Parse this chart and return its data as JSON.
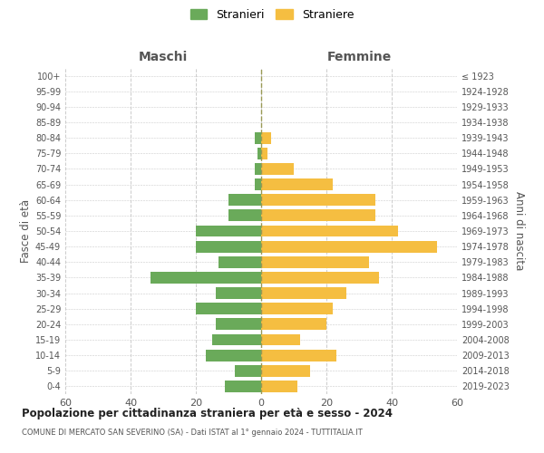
{
  "age_groups": [
    "0-4",
    "5-9",
    "10-14",
    "15-19",
    "20-24",
    "25-29",
    "30-34",
    "35-39",
    "40-44",
    "45-49",
    "50-54",
    "55-59",
    "60-64",
    "65-69",
    "70-74",
    "75-79",
    "80-84",
    "85-89",
    "90-94",
    "95-99",
    "100+"
  ],
  "birth_years": [
    "2019-2023",
    "2014-2018",
    "2009-2013",
    "2004-2008",
    "1999-2003",
    "1994-1998",
    "1989-1993",
    "1984-1988",
    "1979-1983",
    "1974-1978",
    "1969-1973",
    "1964-1968",
    "1959-1963",
    "1954-1958",
    "1949-1953",
    "1944-1948",
    "1939-1943",
    "1934-1938",
    "1929-1933",
    "1924-1928",
    "≤ 1923"
  ],
  "maschi": [
    11,
    8,
    17,
    15,
    14,
    20,
    14,
    34,
    13,
    20,
    20,
    10,
    10,
    2,
    2,
    1,
    2,
    0,
    0,
    0,
    0
  ],
  "femmine": [
    11,
    15,
    23,
    12,
    20,
    22,
    26,
    36,
    33,
    54,
    42,
    35,
    35,
    22,
    10,
    2,
    3,
    0,
    0,
    0,
    0
  ],
  "color_maschi": "#6aaa5a",
  "color_femmine": "#f5be41",
  "title": "Popolazione per cittadinanza straniera per età e sesso - 2024",
  "subtitle": "COMUNE DI MERCATO SAN SEVERINO (SA) - Dati ISTAT al 1° gennaio 2024 - TUTTITALIA.IT",
  "xlabel_left": "Maschi",
  "xlabel_right": "Femmine",
  "ylabel_left": "Fasce di età",
  "ylabel_right": "Anni di nascita",
  "xlim": 60,
  "legend_stranieri": "Stranieri",
  "legend_straniere": "Straniere",
  "background_color": "#ffffff",
  "grid_color": "#cccccc"
}
